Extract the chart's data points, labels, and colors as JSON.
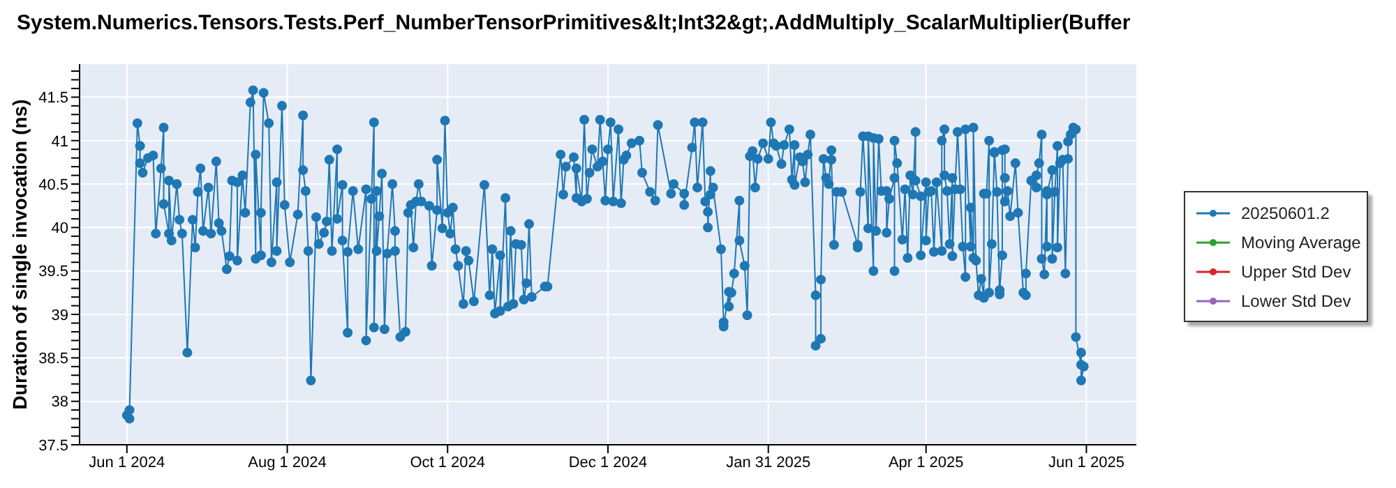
{
  "chart_data": {
    "type": "line",
    "title": "System.Numerics.Tensors.Tests.Perf_NumberTensorPrimitives&lt;Int32&gt;.AddMultiply_ScalarMultiplier(Buffer",
    "ylabel": "Duration of single invocation (ns)",
    "x": [
      "2024-06-01",
      "2024-06-02",
      "2024-06-02",
      "2024-06-05",
      "2024-06-06",
      "2024-06-06",
      "2024-06-07",
      "2024-06-09",
      "2024-06-11",
      "2024-06-12",
      "2024-06-14",
      "2024-06-15",
      "2024-06-15",
      "2024-06-17",
      "2024-06-17",
      "2024-06-18",
      "2024-06-20",
      "2024-06-21",
      "2024-06-22",
      "2024-06-24",
      "2024-06-26",
      "2024-06-27",
      "2024-06-28",
      "2024-06-29",
      "2024-06-30",
      "2024-07-02",
      "2024-07-03",
      "2024-07-05",
      "2024-07-06",
      "2024-07-07",
      "2024-07-09",
      "2024-07-10",
      "2024-07-11",
      "2024-07-13",
      "2024-07-13",
      "2024-07-15",
      "2024-07-16",
      "2024-07-18",
      "2024-07-19",
      "2024-07-20",
      "2024-07-20",
      "2024-07-22",
      "2024-07-22",
      "2024-07-23",
      "2024-07-25",
      "2024-07-26",
      "2024-07-28",
      "2024-07-28",
      "2024-07-30",
      "2024-07-31",
      "2024-08-02",
      "2024-08-05",
      "2024-08-07",
      "2024-08-07",
      "2024-08-08",
      "2024-08-09",
      "2024-08-10",
      "2024-08-12",
      "2024-08-13",
      "2024-08-15",
      "2024-08-16",
      "2024-08-17",
      "2024-08-18",
      "2024-08-20",
      "2024-08-20",
      "2024-08-22",
      "2024-08-22",
      "2024-08-24",
      "2024-08-24",
      "2024-08-26",
      "2024-08-28",
      "2024-08-31",
      "2024-08-31",
      "2024-09-02",
      "2024-09-03",
      "2024-09-03",
      "2024-09-04",
      "2024-09-04",
      "2024-09-05",
      "2024-09-06",
      "2024-09-07",
      "2024-09-08",
      "2024-09-10",
      "2024-09-11",
      "2024-09-11",
      "2024-09-13",
      "2024-09-15",
      "2024-09-16",
      "2024-09-17",
      "2024-09-18",
      "2024-09-19",
      "2024-09-20",
      "2024-09-21",
      "2024-09-24",
      "2024-09-25",
      "2024-09-27",
      "2024-09-27",
      "2024-09-29",
      "2024-09-30",
      "2024-10-01",
      "2024-10-02",
      "2024-10-03",
      "2024-10-04",
      "2024-10-05",
      "2024-10-07",
      "2024-10-08",
      "2024-10-09",
      "2024-10-11",
      "2024-10-15",
      "2024-10-17",
      "2024-10-18",
      "2024-10-19",
      "2024-10-21",
      "2024-10-21",
      "2024-10-23",
      "2024-10-24",
      "2024-10-25",
      "2024-10-26",
      "2024-10-27",
      "2024-10-29",
      "2024-10-30",
      "2024-10-31",
      "2024-11-01",
      "2024-11-02",
      "2024-11-07",
      "2024-11-08",
      "2024-11-13",
      "2024-11-14",
      "2024-11-15",
      "2024-11-18",
      "2024-11-19",
      "2024-11-19",
      "2024-11-21",
      "2024-11-22",
      "2024-11-23",
      "2024-11-24",
      "2024-11-25",
      "2024-11-27",
      "2024-11-28",
      "2024-11-29",
      "2024-11-30",
      "2024-12-01",
      "2024-12-02",
      "2024-12-03",
      "2024-12-05",
      "2024-12-06",
      "2024-12-07",
      "2024-12-08",
      "2024-12-10",
      "2024-12-13",
      "2024-12-14",
      "2024-12-17",
      "2024-12-19",
      "2024-12-20",
      "2024-12-25",
      "2024-12-26",
      "2024-12-30",
      "2024-12-30",
      "2025-01-02",
      "2025-01-03",
      "2025-01-04",
      "2025-01-06",
      "2025-01-07",
      "2025-01-08",
      "2025-01-08",
      "2025-01-09",
      "2025-01-09",
      "2025-01-10",
      "2025-01-13",
      "2025-01-14",
      "2025-01-14",
      "2025-01-16",
      "2025-01-16",
      "2025-01-17",
      "2025-01-18",
      "2025-01-20",
      "2025-01-20",
      "2025-01-22",
      "2025-01-23",
      "2025-01-24",
      "2025-01-25",
      "2025-01-26",
      "2025-01-27",
      "2025-01-29",
      "2025-01-31",
      "2025-02-01",
      "2025-02-02",
      "2025-02-03",
      "2025-02-05",
      "2025-02-06",
      "2025-02-08",
      "2025-02-09",
      "2025-02-10",
      "2025-02-10",
      "2025-02-12",
      "2025-02-13",
      "2025-02-14",
      "2025-02-15",
      "2025-02-16",
      "2025-02-18",
      "2025-02-18",
      "2025-02-20",
      "2025-02-20",
      "2025-02-21",
      "2025-02-22",
      "2025-02-23",
      "2025-02-24",
      "2025-02-24",
      "2025-02-25",
      "2025-02-26",
      "2025-02-28",
      "2025-03-06",
      "2025-03-06",
      "2025-03-07",
      "2025-03-08",
      "2025-03-10",
      "2025-03-10",
      "2025-03-12",
      "2025-03-12",
      "2025-03-13",
      "2025-03-14",
      "2025-03-15",
      "2025-03-17",
      "2025-03-17",
      "2025-03-18",
      "2025-03-20",
      "2025-03-20",
      "2025-03-20",
      "2025-03-21",
      "2025-03-23",
      "2025-03-24",
      "2025-03-25",
      "2025-03-26",
      "2025-03-27",
      "2025-03-28",
      "2025-03-28",
      "2025-03-30",
      "2025-03-30",
      "2025-04-01",
      "2025-04-01",
      "2025-04-02",
      "2025-04-03",
      "2025-04-04",
      "2025-04-05",
      "2025-04-07",
      "2025-04-07",
      "2025-04-08",
      "2025-04-08",
      "2025-04-09",
      "2025-04-10",
      "2025-04-11",
      "2025-04-11",
      "2025-04-12",
      "2025-04-13",
      "2025-04-14",
      "2025-04-15",
      "2025-04-16",
      "2025-04-16",
      "2025-04-18",
      "2025-04-18",
      "2025-04-19",
      "2025-04-19",
      "2025-04-20",
      "2025-04-21",
      "2025-04-22",
      "2025-04-23",
      "2025-04-23",
      "2025-04-24",
      "2025-04-25",
      "2025-04-25",
      "2025-04-26",
      "2025-04-27",
      "2025-04-27",
      "2025-04-28",
      "2025-04-29",
      "2025-04-29",
      "2025-04-30",
      "2025-04-30",
      "2025-05-01",
      "2025-05-01",
      "2025-05-01",
      "2025-05-02",
      "2025-05-03",
      "2025-05-05",
      "2025-05-06",
      "2025-05-08",
      "2025-05-09",
      "2025-05-09",
      "2025-05-11",
      "2025-05-13",
      "2025-05-13",
      "2025-05-14",
      "2025-05-15",
      "2025-05-15",
      "2025-05-16",
      "2025-05-17",
      "2025-05-17",
      "2025-05-17",
      "2025-05-19",
      "2025-05-19",
      "2025-05-20",
      "2025-05-21",
      "2025-05-21",
      "2025-05-22",
      "2025-05-23",
      "2025-05-24",
      "2025-05-25",
      "2025-05-25",
      "2025-05-26",
      "2025-05-27",
      "2025-05-28",
      "2025-05-28",
      "2025-05-30",
      "2025-05-30",
      "2025-05-30",
      "2025-05-31"
    ],
    "series": [
      {
        "name": "20250601.2",
        "color": "#1f77b4",
        "values": [
          37.84,
          37.8,
          37.9,
          41.2,
          40.94,
          40.74,
          40.63,
          40.8,
          40.83,
          39.93,
          40.68,
          41.15,
          40.27,
          39.93,
          40.54,
          39.85,
          40.5,
          40.09,
          39.93,
          38.56,
          40.09,
          39.77,
          40.41,
          40.68,
          39.96,
          40.46,
          39.93,
          40.76,
          40.05,
          39.96,
          39.52,
          39.67,
          40.54,
          40.52,
          39.62,
          40.6,
          40.17,
          41.44,
          41.58,
          39.64,
          40.84,
          39.68,
          40.17,
          41.55,
          41.2,
          39.6,
          40.52,
          39.73,
          41.4,
          40.26,
          39.6,
          40.15,
          41.29,
          40.66,
          40.42,
          39.73,
          38.24,
          40.12,
          39.81,
          39.94,
          40.07,
          40.78,
          39.73,
          40.9,
          40.1,
          40.49,
          39.85,
          38.79,
          39.72,
          40.42,
          39.75,
          40.44,
          38.7,
          40.33,
          41.21,
          38.85,
          40.42,
          39.73,
          40.13,
          40.62,
          38.83,
          39.7,
          40.5,
          39.96,
          39.73,
          38.74,
          38.8,
          40.17,
          40.26,
          39.77,
          40.3,
          40.5,
          40.3,
          40.25,
          39.56,
          40.2,
          40.78,
          39.99,
          41.23,
          40.17,
          39.93,
          40.23,
          39.75,
          39.56,
          39.12,
          39.73,
          39.62,
          39.15,
          40.49,
          39.22,
          39.75,
          39.01,
          39.68,
          39.04,
          40.34,
          39.09,
          39.96,
          39.12,
          39.81,
          39.8,
          39.17,
          39.36,
          40.04,
          39.2,
          39.32,
          39.32,
          40.84,
          40.38,
          40.7,
          40.81,
          40.34,
          40.68,
          40.3,
          41.24,
          40.33,
          40.63,
          40.9,
          40.7,
          41.24,
          40.76,
          40.31,
          40.9,
          41.21,
          40.3,
          41.13,
          40.28,
          40.78,
          40.83,
          40.97,
          41.0,
          40.63,
          40.41,
          40.31,
          41.18,
          40.39,
          40.5,
          40.39,
          40.26,
          40.92,
          41.21,
          40.46,
          41.21,
          40.3,
          40.18,
          40.0,
          40.65,
          40.38,
          40.46,
          39.75,
          38.91,
          38.86,
          39.26,
          39.09,
          39.25,
          39.47,
          40.31,
          39.85,
          39.56,
          38.99,
          40.82,
          40.88,
          40.46,
          40.79,
          40.97,
          40.79,
          41.21,
          40.97,
          40.94,
          40.73,
          40.95,
          41.13,
          40.55,
          40.95,
          40.49,
          40.81,
          40.76,
          40.52,
          40.84,
          41.07,
          39.22,
          38.64,
          38.72,
          39.4,
          40.79,
          40.57,
          40.5,
          40.89,
          40.78,
          39.8,
          40.41,
          40.41,
          39.8,
          39.77,
          40.41,
          41.05,
          39.99,
          41.05,
          39.5,
          41.03,
          39.96,
          41.02,
          40.42,
          40.42,
          39.94,
          40.33,
          40.57,
          39.5,
          41.0,
          40.74,
          39.86,
          40.44,
          39.65,
          40.6,
          40.38,
          41.1,
          40.54,
          40.36,
          39.68,
          40.52,
          39.85,
          40.41,
          40.42,
          39.72,
          40.52,
          39.73,
          41.0,
          41.13,
          40.6,
          40.42,
          39.81,
          40.57,
          39.67,
          40.44,
          41.1,
          40.44,
          39.78,
          39.43,
          41.13,
          39.78,
          40.23,
          39.65,
          41.15,
          39.62,
          39.22,
          39.41,
          39.19,
          40.39,
          40.39,
          41.0,
          39.25,
          39.81,
          40.86,
          40.87,
          40.41,
          39.23,
          39.28,
          39.68,
          40.89,
          40.9,
          40.57,
          40.3,
          40.42,
          40.13,
          40.74,
          40.17,
          39.25,
          39.22,
          39.47,
          40.54,
          40.46,
          40.6,
          40.74,
          41.07,
          39.64,
          39.46,
          40.42,
          39.78,
          40.38,
          40.66,
          39.64,
          40.41,
          40.94,
          39.77,
          40.74,
          40.78,
          39.47,
          40.79,
          40.99,
          41.07,
          41.15,
          41.13,
          38.74,
          38.42,
          38.56,
          38.24,
          38.4
        ]
      },
      {
        "name": "Moving Average",
        "color": "#2ca02c",
        "values": [
          null,
          null,
          null,
          null,
          null,
          null,
          null,
          null,
          null,
          null,
          null,
          null,
          null,
          null,
          null,
          null,
          null,
          null,
          null,
          null,
          null,
          null,
          null,
          null,
          null,
          null,
          null,
          null,
          null,
          null,
          null,
          null,
          null,
          null,
          null,
          null,
          null,
          null,
          null,
          null,
          null,
          null,
          null,
          null,
          null,
          null,
          null,
          null,
          null,
          null,
          null,
          null,
          null,
          null,
          null,
          null,
          null,
          null,
          null,
          null,
          null,
          null,
          null,
          null,
          null,
          null,
          null,
          null,
          null,
          null,
          null,
          null,
          null,
          null,
          null,
          null,
          null,
          null,
          null,
          null,
          null,
          null,
          null,
          null,
          null,
          null,
          null,
          null,
          null,
          null,
          null,
          null,
          null,
          null,
          null,
          null,
          null,
          null,
          null,
          null,
          null,
          null,
          null,
          null,
          null,
          null,
          null,
          null,
          null,
          null,
          null,
          null,
          null,
          null,
          null,
          null,
          null,
          null,
          null,
          null,
          null,
          null,
          null,
          null,
          null,
          null,
          null,
          null,
          null,
          null,
          null,
          null,
          null,
          null,
          null,
          null,
          null,
          null,
          null,
          null,
          null,
          null,
          null,
          null,
          null,
          null,
          null,
          null,
          null,
          null,
          null,
          null,
          null,
          null,
          null,
          null,
          null,
          null,
          null,
          null,
          null,
          null,
          null,
          null,
          null,
          null,
          null,
          null,
          null,
          null,
          null,
          null,
          null,
          null,
          null,
          null,
          null,
          null,
          null,
          null,
          null,
          null,
          null,
          null,
          null,
          null,
          null,
          null,
          null,
          null,
          null,
          null,
          null,
          null,
          null,
          null,
          null,
          null,
          null,
          null,
          null,
          null,
          null,
          null,
          null,
          null,
          null,
          null,
          null,
          null,
          null,
          null,
          null,
          null,
          null,
          null,
          null,
          null,
          null,
          null,
          null,
          null,
          null,
          null,
          null,
          null,
          null,
          null,
          null,
          null,
          null,
          null,
          null,
          null,
          null,
          null,
          null,
          null,
          null,
          null,
          null,
          null,
          null,
          null,
          null,
          null,
          null,
          null,
          null,
          null,
          null,
          null,
          null,
          null,
          null,
          null,
          null,
          null,
          null,
          null,
          null,
          null,
          null,
          null,
          null,
          null,
          null,
          null,
          null,
          null,
          null,
          null,
          null,
          null,
          null,
          null,
          null,
          null,
          null,
          null,
          null,
          null,
          null,
          null,
          null,
          null,
          null,
          null,
          null,
          null,
          null,
          null,
          null,
          null,
          null,
          null,
          null,
          null,
          null,
          null,
          null,
          null,
          null,
          null,
          null,
          null,
          null,
          null,
          null,
          null,
          null,
          null,
          null,
          null,
          null,
          null
        ]
      },
      {
        "name": "Upper Std Dev",
        "color": "#d62728",
        "values": [
          null,
          null,
          null,
          null,
          null,
          null,
          null,
          null,
          null,
          null,
          null,
          null,
          null,
          null,
          null,
          null,
          null,
          null,
          null,
          null,
          null,
          null,
          null,
          null,
          null,
          null,
          null,
          null,
          null,
          null,
          null,
          null,
          null,
          null,
          null,
          null,
          null,
          null,
          null,
          null,
          null,
          null,
          null,
          null,
          null,
          null,
          null,
          null,
          null,
          null,
          null,
          null,
          null,
          null,
          null,
          null,
          null,
          null,
          null,
          null,
          null,
          null,
          null,
          null,
          null,
          null,
          null,
          null,
          null,
          null,
          null,
          null,
          null,
          null,
          null,
          null,
          null,
          null,
          null,
          null,
          null,
          null,
          null,
          null,
          null,
          null,
          null,
          null,
          null,
          null,
          null,
          null,
          null,
          null,
          null,
          null,
          null,
          null,
          null,
          null,
          null,
          null,
          null,
          null,
          null,
          null,
          null,
          null,
          null,
          null,
          null,
          null,
          null,
          null,
          null,
          null,
          null,
          null,
          null,
          null,
          null,
          null,
          null,
          null,
          null,
          null,
          null,
          null,
          null,
          null,
          null,
          null,
          null,
          null,
          null,
          null,
          null,
          null,
          null,
          null,
          null,
          null,
          null,
          null,
          null,
          null,
          null,
          null,
          null,
          null,
          null,
          null,
          null,
          null,
          null,
          null,
          null,
          null,
          null,
          null,
          null,
          null,
          null,
          null,
          null,
          null,
          null,
          null,
          null,
          null,
          null,
          null,
          null,
          null,
          null,
          null,
          null,
          null,
          null,
          null,
          null,
          null,
          null,
          null,
          null,
          null,
          null,
          null,
          null,
          null,
          null,
          null,
          null,
          null,
          null,
          null,
          null,
          null,
          null,
          null,
          null,
          null,
          null,
          null,
          null,
          null,
          null,
          null,
          null,
          null,
          null,
          null,
          null,
          null,
          null,
          null,
          null,
          null,
          null,
          null,
          null,
          null,
          null,
          null,
          null,
          null,
          null,
          null,
          null,
          null,
          null,
          null,
          null,
          null,
          null,
          null,
          null,
          null,
          null,
          null,
          null,
          null,
          null,
          null,
          null,
          null,
          null,
          null,
          null,
          null,
          null,
          null,
          null,
          null,
          null,
          null,
          null,
          null,
          null,
          null,
          null,
          null,
          null,
          null,
          null,
          null,
          null,
          null,
          null,
          null,
          null,
          null,
          null,
          null,
          null,
          null,
          null,
          null,
          null,
          null,
          null,
          null,
          null,
          null,
          null,
          null,
          null,
          null,
          null,
          null,
          null,
          null,
          null,
          null,
          null,
          null,
          null,
          null,
          null,
          null,
          null,
          null,
          null,
          null,
          null,
          null,
          null,
          null,
          null,
          null,
          null,
          null,
          null,
          null,
          null,
          null
        ]
      },
      {
        "name": "Lower Std Dev",
        "color": "#9467bd",
        "values": [
          null,
          null,
          null,
          null,
          null,
          null,
          null,
          null,
          null,
          null,
          null,
          null,
          null,
          null,
          null,
          null,
          null,
          null,
          null,
          null,
          null,
          null,
          null,
          null,
          null,
          null,
          null,
          null,
          null,
          null,
          null,
          null,
          null,
          null,
          null,
          null,
          null,
          null,
          null,
          null,
          null,
          null,
          null,
          null,
          null,
          null,
          null,
          null,
          null,
          null,
          null,
          null,
          null,
          null,
          null,
          null,
          null,
          null,
          null,
          null,
          null,
          null,
          null,
          null,
          null,
          null,
          null,
          null,
          null,
          null,
          null,
          null,
          null,
          null,
          null,
          null,
          null,
          null,
          null,
          null,
          null,
          null,
          null,
          null,
          null,
          null,
          null,
          null,
          null,
          null,
          null,
          null,
          null,
          null,
          null,
          null,
          null,
          null,
          null,
          null,
          null,
          null,
          null,
          null,
          null,
          null,
          null,
          null,
          null,
          null,
          null,
          null,
          null,
          null,
          null,
          null,
          null,
          null,
          null,
          null,
          null,
          null,
          null,
          null,
          null,
          null,
          null,
          null,
          null,
          null,
          null,
          null,
          null,
          null,
          null,
          null,
          null,
          null,
          null,
          null,
          null,
          null,
          null,
          null,
          null,
          null,
          null,
          null,
          null,
          null,
          null,
          null,
          null,
          null,
          null,
          null,
          null,
          null,
          null,
          null,
          null,
          null,
          null,
          null,
          null,
          null,
          null,
          null,
          null,
          null,
          null,
          null,
          null,
          null,
          null,
          null,
          null,
          null,
          null,
          null,
          null,
          null,
          null,
          null,
          null,
          null,
          null,
          null,
          null,
          null,
          null,
          null,
          null,
          null,
          null,
          null,
          null,
          null,
          null,
          null,
          null,
          null,
          null,
          null,
          null,
          null,
          null,
          null,
          null,
          null,
          null,
          null,
          null,
          null,
          null,
          null,
          null,
          null,
          null,
          null,
          null,
          null,
          null,
          null,
          null,
          null,
          null,
          null,
          null,
          null,
          null,
          null,
          null,
          null,
          null,
          null,
          null,
          null,
          null,
          null,
          null,
          null,
          null,
          null,
          null,
          null,
          null,
          null,
          null,
          null,
          null,
          null,
          null,
          null,
          null,
          null,
          null,
          null,
          null,
          null,
          null,
          null,
          null,
          null,
          null,
          null,
          null,
          null,
          null,
          null,
          null,
          null,
          null,
          null,
          null,
          null,
          null,
          null,
          null,
          null,
          null,
          null,
          null,
          null,
          null,
          null,
          null,
          null,
          null,
          null,
          null,
          null,
          null,
          null,
          null,
          null,
          null,
          null,
          null,
          null,
          null,
          null,
          null,
          null,
          null,
          null,
          null,
          null,
          null,
          null,
          null,
          null,
          null,
          null,
          null,
          null
        ]
      }
    ],
    "xlim": [
      "2024-05-14",
      "2025-06-20"
    ],
    "xticks": [
      {
        "value": "2024-06-01",
        "label": "Jun 1 2024"
      },
      {
        "value": "2024-08-01",
        "label": "Aug 1 2024"
      },
      {
        "value": "2024-10-01",
        "label": "Oct 1 2024"
      },
      {
        "value": "2024-12-01",
        "label": "Dec 1 2024"
      },
      {
        "value": "2025-01-31",
        "label": "Jan 31 2025"
      },
      {
        "value": "2025-04-01",
        "label": "Apr 1 2025"
      },
      {
        "value": "2025-06-01",
        "label": "Jun 1 2025"
      }
    ],
    "ylim": [
      37.5,
      41.88
    ],
    "yticks": [
      37.5,
      {
        "value": 37.6,
        "label": null
      },
      {
        "value": 37.7,
        "label": null
      },
      {
        "value": 37.8,
        "label": null
      },
      {
        "value": 37.9,
        "label": null
      },
      38,
      {
        "value": 38.1,
        "label": null
      },
      {
        "value": 38.2,
        "label": null
      },
      {
        "value": 38.3,
        "label": null
      },
      {
        "value": 38.4,
        "label": null
      },
      38.5,
      {
        "value": 38.6,
        "label": null
      },
      {
        "value": 38.7,
        "label": null
      },
      {
        "value": 38.8,
        "label": null
      },
      {
        "value": 38.9,
        "label": null
      },
      39,
      {
        "value": 39.1,
        "label": null
      },
      {
        "value": 39.2,
        "label": null
      },
      {
        "value": 39.3,
        "label": null
      },
      {
        "value": 39.4,
        "label": null
      },
      39.5,
      {
        "value": 39.6,
        "label": null
      },
      {
        "value": 39.7,
        "label": null
      },
      {
        "value": 39.8,
        "label": null
      },
      {
        "value": 39.9,
        "label": null
      },
      40,
      {
        "value": 40.1,
        "label": null
      },
      {
        "value": 40.2,
        "label": null
      },
      {
        "value": 40.3,
        "label": null
      },
      {
        "value": 40.4,
        "label": null
      },
      40.5,
      {
        "value": 40.6,
        "label": null
      },
      {
        "value": 40.7,
        "label": null
      },
      {
        "value": 40.8,
        "label": null
      },
      {
        "value": 40.9,
        "label": null
      },
      41,
      {
        "value": 41.1,
        "label": null
      },
      {
        "value": 41.2,
        "label": null
      },
      {
        "value": 41.3,
        "label": null
      },
      {
        "value": 41.4,
        "label": null
      },
      41.5,
      {
        "value": 41.6,
        "label": null
      },
      {
        "value": 41.7,
        "label": null
      },
      {
        "value": 41.8,
        "label": null
      }
    ],
    "grid": true,
    "legend": "right",
    "marker": "circle"
  }
}
